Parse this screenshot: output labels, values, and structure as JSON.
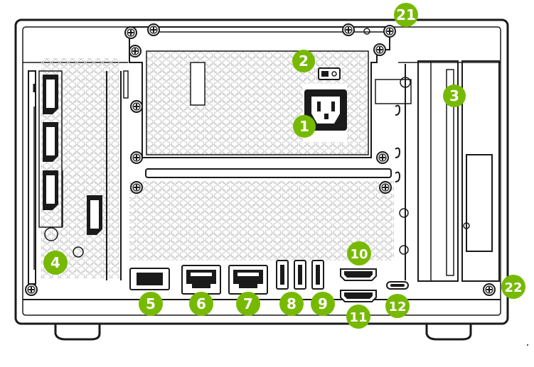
{
  "colors": {
    "accent": "#76b900",
    "outline": "#1a1a1a",
    "chassis": "#ffffff",
    "mesh": "#d2d2d2",
    "port_fill": "#1a1a1a"
  },
  "callouts": [
    {
      "id": "c1",
      "label": "1",
      "meaning": "power-socket"
    },
    {
      "id": "c2",
      "label": "2",
      "meaning": "power-switch"
    },
    {
      "id": "c3",
      "label": "3",
      "meaning": "expansion-slot"
    },
    {
      "id": "c4",
      "label": "4",
      "meaning": "gpu-displayport-panel"
    },
    {
      "id": "c5",
      "label": "5",
      "meaning": "port-5"
    },
    {
      "id": "c6",
      "label": "6",
      "meaning": "ethernet-port-6"
    },
    {
      "id": "c7",
      "label": "7",
      "meaning": "ethernet-port-7"
    },
    {
      "id": "c8",
      "label": "8",
      "meaning": "usb-ports-8"
    },
    {
      "id": "c9",
      "label": "9",
      "meaning": "usb-port-9"
    },
    {
      "id": "c10",
      "label": "10",
      "meaning": "hdmi-port-10"
    },
    {
      "id": "c11",
      "label": "11",
      "meaning": "hdmi-port-11"
    },
    {
      "id": "c12",
      "label": "12",
      "meaning": "usb-c-port"
    },
    {
      "id": "c21",
      "label": "21",
      "meaning": "psu-thumbscrew"
    },
    {
      "id": "c22",
      "label": "22",
      "meaning": "case-thumbscrew"
    }
  ],
  "icons": {
    "screw": "screw-icon",
    "ethernet": "ethernet-port-icon",
    "usb": "usb-port-icon",
    "hdmi": "hdmi-port-icon",
    "displayport": "displayport-icon",
    "power_socket": "power-socket-icon",
    "power_switch": "power-switch-icon"
  }
}
